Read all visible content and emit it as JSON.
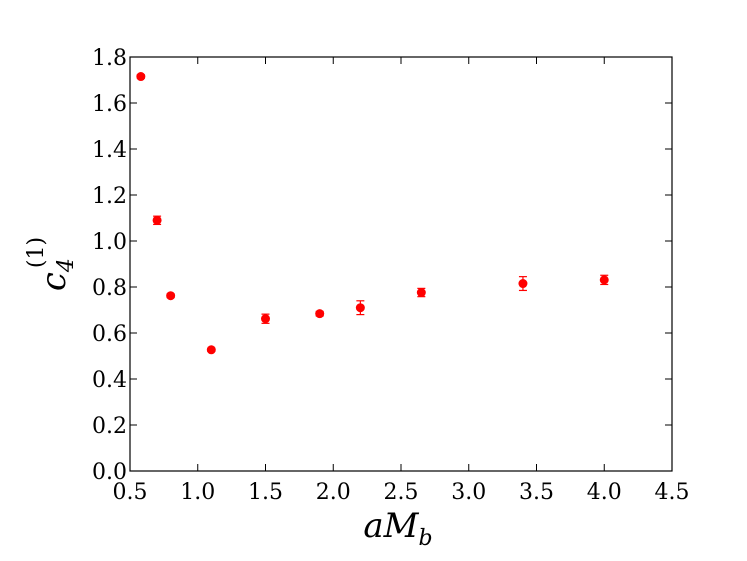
{
  "chart_data": {
    "type": "scatter",
    "title": "",
    "xlabel_parts": {
      "main": "aM",
      "sub": "b"
    },
    "ylabel_parts": {
      "main": "c",
      "sub": "4",
      "sup": "(1)"
    },
    "xlim": [
      0.5,
      4.5
    ],
    "ylim": [
      0.0,
      1.8
    ],
    "x_ticks": [
      "0.5",
      "1.0",
      "1.5",
      "2.0",
      "2.5",
      "3.0",
      "3.5",
      "4.0",
      "4.5"
    ],
    "y_ticks": [
      "0.0",
      "0.2",
      "0.4",
      "0.6",
      "0.8",
      "1.0",
      "1.2",
      "1.4",
      "1.6",
      "1.8"
    ],
    "grid": false,
    "marker_color": "#ff0000",
    "points": [
      {
        "x": 0.58,
        "y": 1.715,
        "err": 0.008
      },
      {
        "x": 0.7,
        "y": 1.09,
        "err": 0.018
      },
      {
        "x": 0.8,
        "y": 0.762,
        "err": 0.008
      },
      {
        "x": 1.1,
        "y": 0.527,
        "err": 0.007
      },
      {
        "x": 1.5,
        "y": 0.662,
        "err": 0.02
      },
      {
        "x": 1.9,
        "y": 0.684,
        "err": 0.01
      },
      {
        "x": 2.2,
        "y": 0.71,
        "err": 0.03
      },
      {
        "x": 2.65,
        "y": 0.776,
        "err": 0.018
      },
      {
        "x": 3.4,
        "y": 0.815,
        "err": 0.03
      },
      {
        "x": 4.0,
        "y": 0.831,
        "err": 0.02
      }
    ]
  }
}
